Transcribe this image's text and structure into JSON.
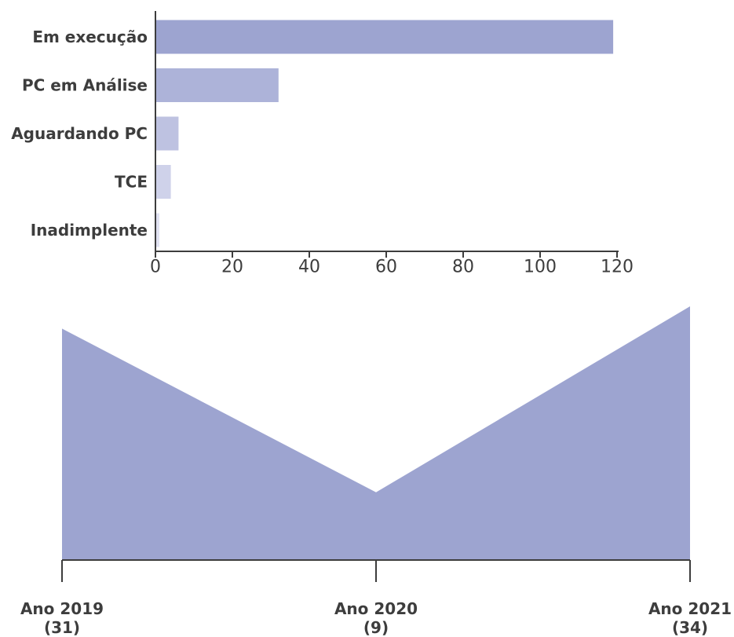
{
  "chart_data": [
    {
      "type": "bar",
      "orientation": "horizontal",
      "categories": [
        "Em execução",
        "PC em Análise",
        "Aguardando PC",
        "TCE",
        "Inadimplente"
      ],
      "values": [
        119,
        32,
        6,
        4,
        1
      ],
      "colors": [
        "#9da4d0",
        "#adb3d9",
        "#bec2e1",
        "#cfd2ea",
        "#e0e2f2"
      ],
      "xlim": [
        0,
        120
      ],
      "xticks": [
        0,
        20,
        40,
        60,
        80,
        100,
        120
      ],
      "grid": false,
      "legend": "none"
    },
    {
      "type": "area",
      "categories": [
        "Ano 2019",
        "Ano 2020",
        "Ano 2021"
      ],
      "sublabels": [
        "(31)",
        "(9)",
        "(34)"
      ],
      "values": [
        31,
        9,
        34
      ],
      "color": "#9da4d0",
      "ylim": [
        0,
        34
      ],
      "grid": false,
      "legend": "none"
    }
  ]
}
